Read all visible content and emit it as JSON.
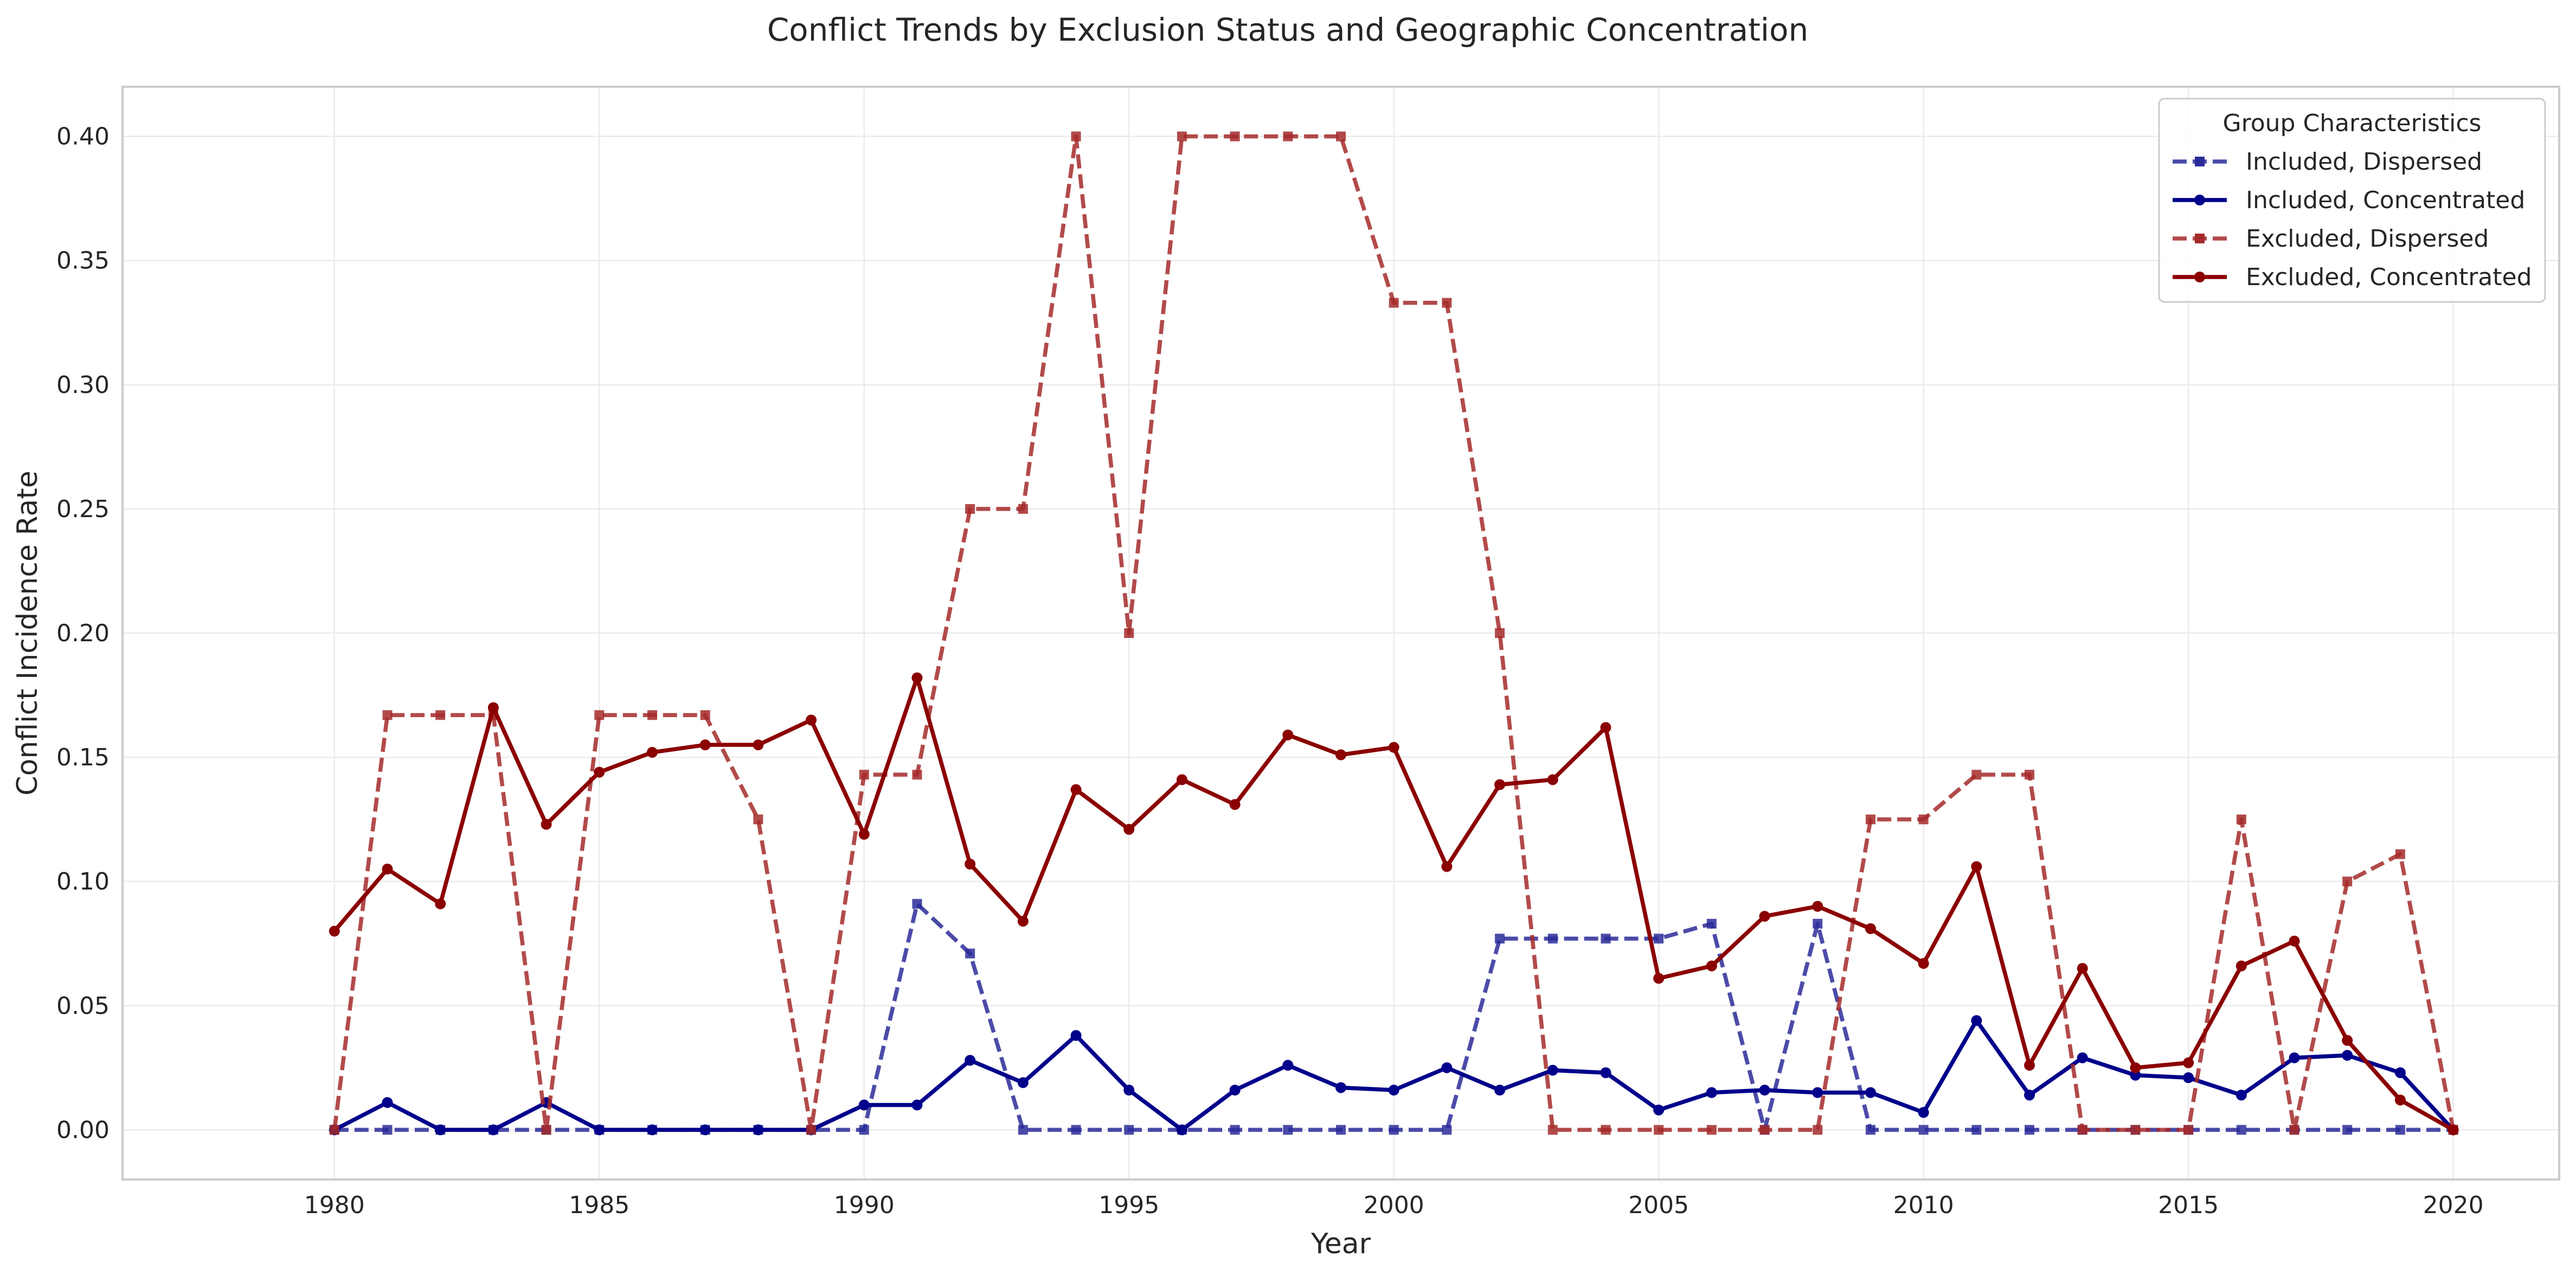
{
  "chart_data": {
    "type": "line",
    "title": "Conflict Trends by Exclusion Status and Geographic Concentration",
    "xlabel": "Year",
    "ylabel": "Conflict Incidence Rate",
    "xlim": [
      1976,
      2022
    ],
    "ylim": [
      -0.02,
      0.42
    ],
    "x_ticks": [
      1980,
      1985,
      1990,
      1995,
      2000,
      2005,
      2010,
      2015,
      2020
    ],
    "y_ticks": [
      0.0,
      0.05,
      0.1,
      0.15,
      0.2,
      0.25,
      0.3,
      0.35,
      0.4
    ],
    "y_tick_labels": [
      "0.00",
      "0.05",
      "0.10",
      "0.15",
      "0.20",
      "0.25",
      "0.30",
      "0.35",
      "0.40"
    ],
    "grid": true,
    "legend": {
      "title": "Group Characteristics",
      "placement": "top-right"
    },
    "x": [
      1980,
      1981,
      1982,
      1983,
      1984,
      1985,
      1986,
      1987,
      1988,
      1989,
      1990,
      1991,
      1992,
      1993,
      1994,
      1995,
      1996,
      1997,
      1998,
      1999,
      2000,
      2001,
      2002,
      2003,
      2004,
      2005,
      2006,
      2007,
      2008,
      2009,
      2010,
      2011,
      2012,
      2013,
      2014,
      2015,
      2016,
      2017,
      2018,
      2019,
      2020
    ],
    "series": [
      {
        "name": "Included, Dispersed",
        "color": "#2b2b9a",
        "style": "dashed",
        "marker": "square",
        "values": [
          0,
          0,
          0,
          0,
          0,
          0,
          0,
          0,
          0,
          0,
          0,
          0.091,
          0.071,
          0,
          0,
          0,
          0,
          0,
          0,
          0,
          0,
          0,
          0.077,
          0.077,
          0.077,
          0.077,
          0.083,
          0,
          0.083,
          0,
          0,
          0,
          0,
          0,
          0,
          0,
          0,
          0,
          0,
          0,
          0
        ]
      },
      {
        "name": "Included, Concentrated",
        "color": "#00008b",
        "style": "solid",
        "marker": "circle",
        "values": [
          0,
          0.011,
          0,
          0,
          0.011,
          0,
          0,
          0,
          0,
          0,
          0.01,
          0.01,
          0.028,
          0.019,
          0.038,
          0.016,
          0,
          0.016,
          0.026,
          0.017,
          0.016,
          0.025,
          0.016,
          0.024,
          0.023,
          0.008,
          0.015,
          0.016,
          0.015,
          0.015,
          0.007,
          0.044,
          0.014,
          0.029,
          0.022,
          0.021,
          0.014,
          0.029,
          0.03,
          0.023,
          0
        ]
      },
      {
        "name": "Excluded, Dispersed",
        "color": "#a52a2a",
        "style": "dashed",
        "marker": "square",
        "values": [
          0,
          0.167,
          0.167,
          0.167,
          0,
          0.167,
          0.167,
          0.167,
          0.125,
          0,
          0.143,
          0.143,
          0.25,
          0.25,
          0.4,
          0.2,
          0.4,
          0.4,
          0.4,
          0.4,
          0.333,
          0.333,
          0.2,
          0,
          0,
          0,
          0,
          0,
          0,
          0.125,
          0.125,
          0.143,
          0.143,
          0,
          0,
          0,
          0.125,
          0,
          0.1,
          0.111,
          0
        ]
      },
      {
        "name": "Excluded, Concentrated",
        "color": "#8b0000",
        "style": "solid",
        "marker": "circle",
        "values": [
          0.08,
          0.105,
          0.091,
          0.17,
          0.123,
          0.144,
          0.152,
          0.155,
          0.155,
          0.165,
          0.119,
          0.182,
          0.107,
          0.084,
          0.137,
          0.121,
          0.141,
          0.131,
          0.159,
          0.151,
          0.154,
          0.106,
          0.139,
          0.141,
          0.162,
          0.061,
          0.066,
          0.086,
          0.09,
          0.081,
          0.067,
          0.106,
          0.026,
          0.065,
          0.025,
          0.027,
          0.066,
          0.076,
          0.036,
          0.012,
          0
        ]
      }
    ]
  }
}
